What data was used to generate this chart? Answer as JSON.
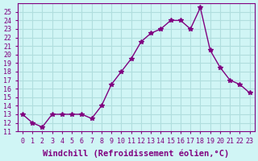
{
  "x": [
    0,
    1,
    2,
    3,
    4,
    5,
    6,
    7,
    8,
    9,
    10,
    11,
    12,
    13,
    14,
    15,
    16,
    17,
    18,
    19,
    20,
    21,
    22,
    23
  ],
  "y": [
    13,
    12,
    11.5,
    13,
    13,
    13,
    13,
    12.5,
    14,
    16.5,
    18,
    19.5,
    21.5,
    22.5,
    23,
    24,
    24,
    23,
    25.5,
    20.5,
    18.5,
    17,
    16.5,
    15.5
  ],
  "line_color": "#800080",
  "marker": "*",
  "bg_color": "#d0f5f5",
  "grid_color": "#b0dede",
  "xlabel": "Windchill (Refroidissement éolien,°C)",
  "xlabel_color": "#800080",
  "ylim": [
    11,
    26
  ],
  "xlim": [
    -0.5,
    23.5
  ],
  "yticks": [
    11,
    12,
    13,
    14,
    15,
    16,
    17,
    18,
    19,
    20,
    21,
    22,
    23,
    24,
    25
  ],
  "xticks": [
    0,
    1,
    2,
    3,
    4,
    5,
    6,
    7,
    8,
    9,
    10,
    11,
    12,
    13,
    14,
    15,
    16,
    17,
    18,
    19,
    20,
    21,
    22,
    23
  ],
  "tick_label_color": "#800080",
  "spine_color": "#800080",
  "xlabel_fontsize": 7.5,
  "ytick_fontsize": 6,
  "xtick_fontsize": 6
}
